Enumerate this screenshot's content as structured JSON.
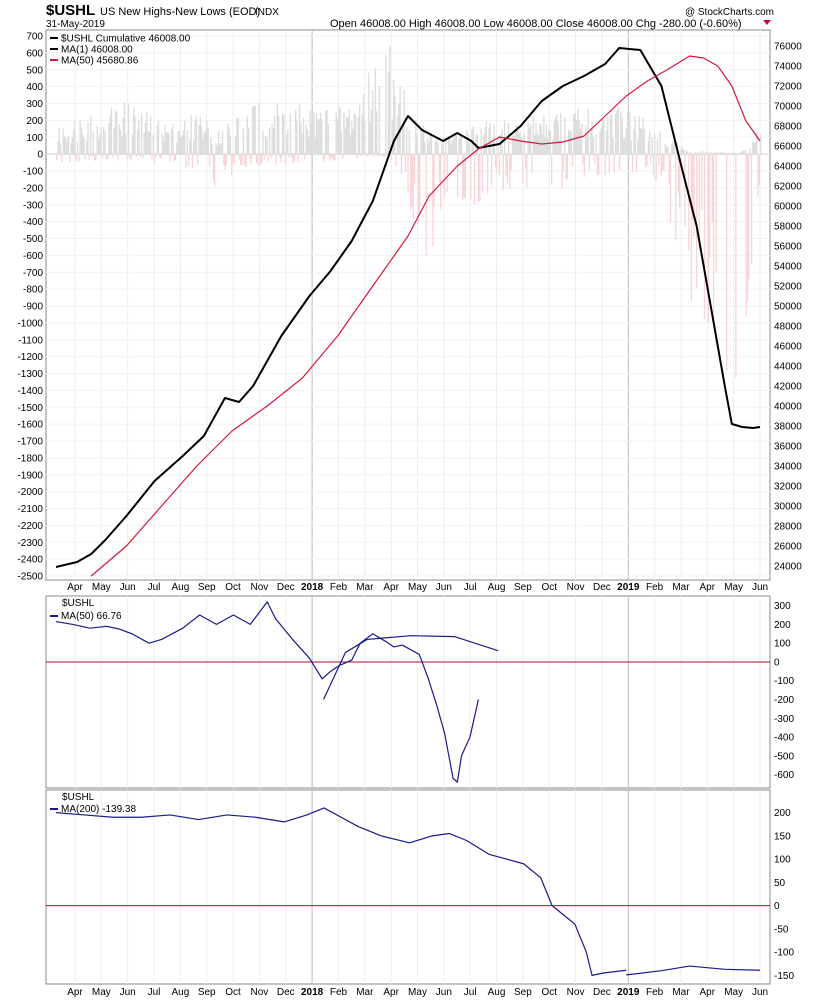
{
  "header": {
    "symbol": "$USHL",
    "name": "US New Highs-New Lows (EOD)",
    "exchange": "INDX",
    "date": "31-May-2019",
    "quote": "Open 46008.00  High 46008.00  Low 46008.00  Close 46008.00  Chg -280.00 (-0.60%)",
    "watermark": "@ StockCharts.com"
  },
  "colors": {
    "hist_pos": "#dcdcdc",
    "hist_neg": "#f6d5d8",
    "ma50_main": "#d6183d",
    "panel_line": "#1a1a8c",
    "zero_line": "#a50f2f"
  },
  "x_axis": {
    "labels": [
      "Apr",
      "May",
      "Jun",
      "Jul",
      "Aug",
      "Sep",
      "Oct",
      "Nov",
      "Dec",
      "2018",
      "Feb",
      "Mar",
      "Apr",
      "May",
      "Jun",
      "Jul",
      "Aug",
      "Sep",
      "Oct",
      "Nov",
      "Dec",
      "2019",
      "Feb",
      "Mar",
      "Apr",
      "May",
      "Jun"
    ],
    "bold": [
      "2018",
      "2019"
    ]
  },
  "chart_data": [
    {
      "type": "line",
      "panel": "main",
      "title": "$USHL US New Highs-New Lows (EOD) INDX",
      "x": [
        "2017-04-01",
        "2017-05-01",
        "2017-06-01",
        "2017-07-01",
        "2017-08-01",
        "2017-09-01",
        "2017-10-01",
        "2017-11-01",
        "2017-12-01",
        "2018-01-01",
        "2018-02-01",
        "2018-03-01",
        "2018-04-01",
        "2018-05-01",
        "2018-06-01",
        "2018-07-01",
        "2018-08-01",
        "2018-09-01",
        "2018-10-01",
        "2018-11-01",
        "2018-12-01",
        "2019-01-01",
        "2019-02-01",
        "2019-03-01",
        "2019-04-01",
        "2019-05-01",
        "2019-06-01"
      ],
      "left_ylim": [
        -2500,
        700
      ],
      "left_ticks": [
        700,
        600,
        500,
        400,
        300,
        200,
        100,
        0,
        -100,
        -200,
        -300,
        -400,
        -500,
        -600,
        -700,
        -800,
        -900,
        -1000,
        -1100,
        -1200,
        -1300,
        -1400,
        -1500,
        -1600,
        -1700,
        -1800,
        -1900,
        -2000,
        -2100,
        -2200,
        -2300,
        -2400,
        -2500
      ],
      "right_ylim": [
        23000,
        77000
      ],
      "right_ticks": [
        76000,
        74000,
        72000,
        70000,
        68000,
        66000,
        64000,
        62000,
        60000,
        58000,
        56000,
        54000,
        52000,
        50000,
        48000,
        46000,
        44000,
        42000,
        40000,
        38000,
        36000,
        34000,
        32000,
        30000,
        28000,
        26000,
        24000
      ],
      "series": [
        {
          "name": "$USHL Cumulative 46008.00",
          "axis": "right",
          "color": "#000000",
          "points": [
            [
              0,
              23900
            ],
            [
              0.03,
              24400
            ],
            [
              0.05,
              25200
            ],
            [
              0.07,
              26600
            ],
            [
              0.1,
              29000
            ],
            [
              0.14,
              32500
            ],
            [
              0.18,
              35000
            ],
            [
              0.21,
              37000
            ],
            [
              0.24,
              40800
            ],
            [
              0.26,
              40400
            ],
            [
              0.28,
              42000
            ],
            [
              0.32,
              47000
            ],
            [
              0.36,
              51000
            ],
            [
              0.39,
              53500
            ],
            [
              0.42,
              56500
            ],
            [
              0.45,
              60500
            ],
            [
              0.48,
              66500
            ],
            [
              0.5,
              69000
            ],
            [
              0.52,
              67600
            ],
            [
              0.55,
              66500
            ],
            [
              0.57,
              67300
            ],
            [
              0.59,
              66500
            ],
            [
              0.6,
              65800
            ],
            [
              0.63,
              66200
            ],
            [
              0.66,
              68000
            ],
            [
              0.69,
              70500
            ],
            [
              0.72,
              72000
            ],
            [
              0.75,
              73000
            ],
            [
              0.78,
              74200
            ],
            [
              0.8,
              75800
            ],
            [
              0.83,
              75600
            ],
            [
              0.86,
              72000
            ],
            [
              0.89,
              63500
            ],
            [
              0.91,
              58000
            ],
            [
              0.93,
              50000
            ],
            [
              0.95,
              42000
            ],
            [
              0.96,
              38200
            ],
            [
              0.975,
              37900
            ],
            [
              0.99,
              37800
            ],
            [
              1.0,
              37900
            ]
          ]
        },
        {
          "name": "MA(1) 46008.00",
          "axis": "right",
          "color": "#000000",
          "points": []
        },
        {
          "name": "MA(50) 45680.86",
          "axis": "right",
          "color": "#d6183d",
          "points": [
            [
              0.05,
              23000
            ],
            [
              0.1,
              26000
            ],
            [
              0.15,
              30000
            ],
            [
              0.2,
              34000
            ],
            [
              0.25,
              37500
            ],
            [
              0.3,
              40000
            ],
            [
              0.35,
              42800
            ],
            [
              0.4,
              47000
            ],
            [
              0.45,
              52000
            ],
            [
              0.5,
              57000
            ],
            [
              0.53,
              61000
            ],
            [
              0.57,
              64000
            ],
            [
              0.6,
              65700
            ],
            [
              0.63,
              66900
            ],
            [
              0.66,
              66500
            ],
            [
              0.69,
              66200
            ],
            [
              0.72,
              66400
            ],
            [
              0.75,
              67000
            ],
            [
              0.78,
              69000
            ],
            [
              0.81,
              71000
            ],
            [
              0.84,
              72500
            ],
            [
              0.87,
              73700
            ],
            [
              0.9,
              75000
            ],
            [
              0.92,
              74800
            ],
            [
              0.94,
              74000
            ],
            [
              0.96,
              72000
            ],
            [
              0.98,
              68500
            ],
            [
              1.0,
              66500
            ]
          ]
        }
      ]
    },
    {
      "type": "line",
      "panel": "ma50",
      "title": "$USHL",
      "ylim": [
        -650,
        330
      ],
      "ticks": [
        300,
        200,
        100,
        0,
        -100,
        -200,
        -300,
        -400,
        -500,
        -600
      ],
      "series": [
        {
          "name": "MA(50) 66.76",
          "color": "#1a1a8c",
          "points": []
        }
      ]
    },
    {
      "type": "line",
      "panel": "ma200",
      "title": "$USHL",
      "ylim": [
        -160,
        240
      ],
      "ticks": [
        200,
        150,
        100,
        50,
        0,
        -50,
        -100,
        -150
      ],
      "series": [
        {
          "name": "MA(200) -139.38",
          "color": "#1a1a8c",
          "points": []
        }
      ]
    }
  ]
}
